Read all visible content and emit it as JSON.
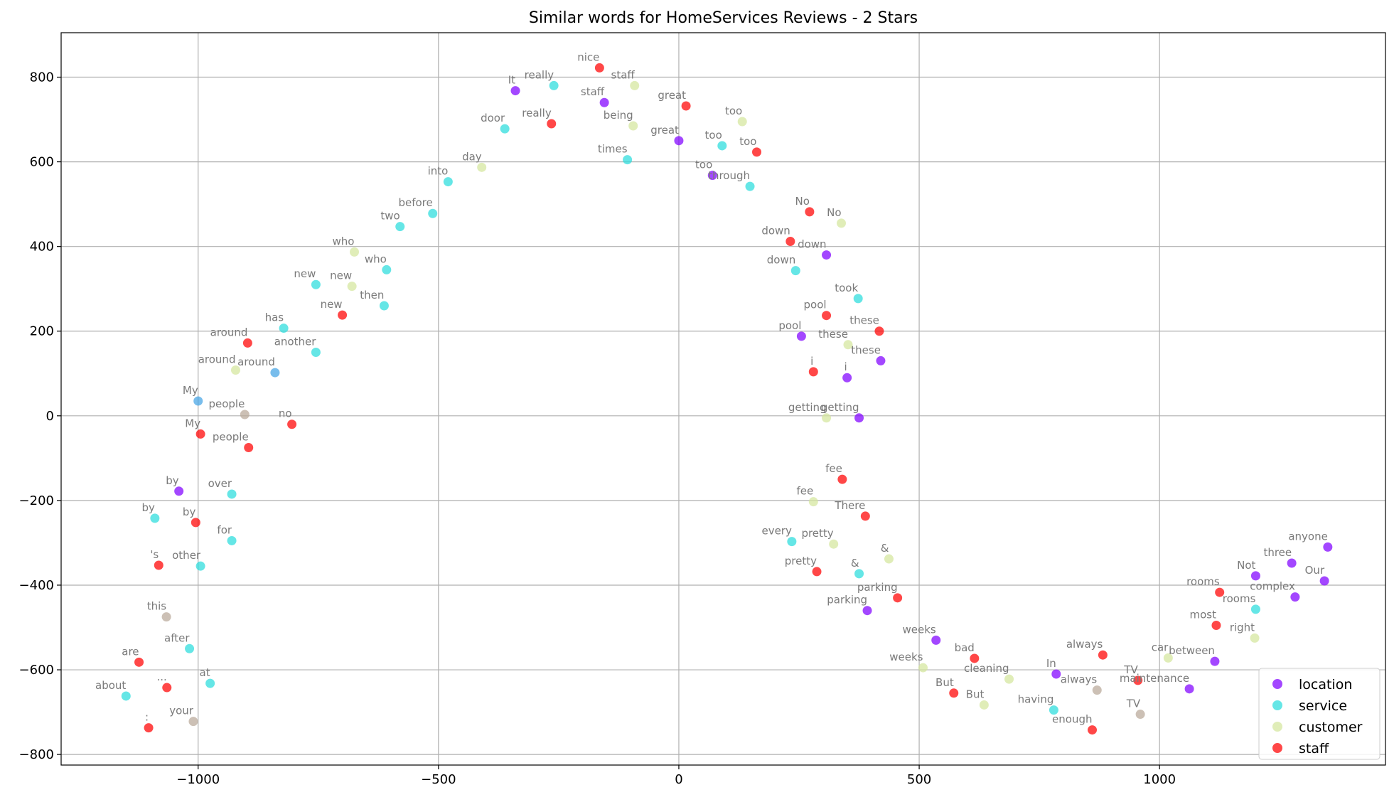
{
  "chart_data": {
    "type": "scatter",
    "title": "Similar words for HomeServices Reviews - 2 Stars",
    "xlabel": "",
    "ylabel": "",
    "xlim": [
      -1285,
      1470
    ],
    "ylim": [
      -825,
      905
    ],
    "xticks": [
      -1000,
      -500,
      0,
      500,
      1000
    ],
    "yticks": [
      -800,
      -600,
      -400,
      -200,
      0,
      200,
      400,
      600,
      800
    ],
    "xtick_labels": [
      "−1000",
      "−500",
      "0",
      "500",
      "1000"
    ],
    "ytick_labels": [
      "−800",
      "−600",
      "−400",
      "−200",
      "0",
      "200",
      "400",
      "600",
      "800"
    ],
    "grid": true,
    "legend_position": "lower right",
    "series": [
      {
        "name": "location",
        "color": "#8000ff",
        "points": [
          {
            "x": -340,
            "y": 768,
            "label": "It"
          },
          {
            "x": -155,
            "y": 740,
            "label": "staff"
          },
          {
            "x": 0,
            "y": 650,
            "label": "great"
          },
          {
            "x": 70,
            "y": 568,
            "label": "too"
          },
          {
            "x": 307,
            "y": 380,
            "label": "down"
          },
          {
            "x": 255,
            "y": 188,
            "label": "pool"
          },
          {
            "x": 420,
            "y": 130,
            "label": "these"
          },
          {
            "x": 350,
            "y": 90,
            "label": "i"
          },
          {
            "x": 375,
            "y": -5,
            "label": "getting"
          },
          {
            "x": -1040,
            "y": -178,
            "label": "by"
          },
          {
            "x": 392,
            "y": -460,
            "label": "parking"
          },
          {
            "x": 535,
            "y": -530,
            "label": "weeks"
          },
          {
            "x": 785,
            "y": -610,
            "label": "In"
          },
          {
            "x": 1062,
            "y": -645,
            "label": "maintenance"
          },
          {
            "x": 1115,
            "y": -580,
            "label": "between"
          },
          {
            "x": 1200,
            "y": -378,
            "label": "Not"
          },
          {
            "x": 1275,
            "y": -348,
            "label": "three"
          },
          {
            "x": 1282,
            "y": -428,
            "label": "complex"
          },
          {
            "x": 1350,
            "y": -310,
            "label": "anyone"
          },
          {
            "x": 1343,
            "y": -390,
            "label": "Our"
          }
        ]
      },
      {
        "name": "service",
        "color": "#2adddd",
        "points": [
          {
            "x": -260,
            "y": 780,
            "label": "really"
          },
          {
            "x": -362,
            "y": 678,
            "label": "door"
          },
          {
            "x": -107,
            "y": 605,
            "label": "times"
          },
          {
            "x": 90,
            "y": 638,
            "label": "too"
          },
          {
            "x": 148,
            "y": 542,
            "label": "through"
          },
          {
            "x": -480,
            "y": 553,
            "label": "into"
          },
          {
            "x": -512,
            "y": 478,
            "label": "before"
          },
          {
            "x": -580,
            "y": 447,
            "label": "two"
          },
          {
            "x": -608,
            "y": 345,
            "label": "who"
          },
          {
            "x": -755,
            "y": 310,
            "label": "new"
          },
          {
            "x": -613,
            "y": 260,
            "label": "then"
          },
          {
            "x": -822,
            "y": 207,
            "label": "has"
          },
          {
            "x": -755,
            "y": 150,
            "label": "another"
          },
          {
            "x": 243,
            "y": 343,
            "label": "down"
          },
          {
            "x": 373,
            "y": 277,
            "label": "took"
          },
          {
            "x": -930,
            "y": -185,
            "label": "over"
          },
          {
            "x": -1090,
            "y": -242,
            "label": "by"
          },
          {
            "x": -930,
            "y": -295,
            "label": "for"
          },
          {
            "x": -995,
            "y": -355,
            "label": "other"
          },
          {
            "x": 235,
            "y": -297,
            "label": "every"
          },
          {
            "x": 375,
            "y": -373,
            "label": "&"
          },
          {
            "x": -1018,
            "y": -550,
            "label": "after"
          },
          {
            "x": -975,
            "y": -632,
            "label": "at"
          },
          {
            "x": -1150,
            "y": -662,
            "label": "about"
          },
          {
            "x": 780,
            "y": -695,
            "label": "having"
          },
          {
            "x": 1200,
            "y": -457,
            "label": "rooms"
          }
        ]
      },
      {
        "name": "customer",
        "color": "#d4e69c",
        "points": [
          {
            "x": -92,
            "y": 780,
            "label": "staff"
          },
          {
            "x": -95,
            "y": 685,
            "label": "being"
          },
          {
            "x": 132,
            "y": 695,
            "label": "too"
          },
          {
            "x": -410,
            "y": 587,
            "label": "day"
          },
          {
            "x": 338,
            "y": 455,
            "label": "No"
          },
          {
            "x": -675,
            "y": 387,
            "label": "who"
          },
          {
            "x": -680,
            "y": 306,
            "label": "new"
          },
          {
            "x": -922,
            "y": 108,
            "label": "around"
          },
          {
            "x": 352,
            "y": 168,
            "label": "these"
          },
          {
            "x": 307,
            "y": -5,
            "label": "getting"
          },
          {
            "x": 280,
            "y": -203,
            "label": "fee"
          },
          {
            "x": 322,
            "y": -303,
            "label": "pretty"
          },
          {
            "x": 437,
            "y": -338,
            "label": "&"
          },
          {
            "x": 508,
            "y": -595,
            "label": "weeks"
          },
          {
            "x": 635,
            "y": -683,
            "label": "But"
          },
          {
            "x": 687,
            "y": -622,
            "label": "cleaning"
          },
          {
            "x": 1018,
            "y": -572,
            "label": "car"
          },
          {
            "x": 1198,
            "y": -525,
            "label": "right"
          }
        ]
      },
      {
        "name": "staff",
        "color": "#ff0000",
        "points": [
          {
            "x": -165,
            "y": 822,
            "label": "nice"
          },
          {
            "x": -265,
            "y": 690,
            "label": "really"
          },
          {
            "x": 15,
            "y": 732,
            "label": "great"
          },
          {
            "x": 162,
            "y": 623,
            "label": "too"
          },
          {
            "x": 272,
            "y": 482,
            "label": "No"
          },
          {
            "x": 232,
            "y": 412,
            "label": "down"
          },
          {
            "x": 307,
            "y": 237,
            "label": "pool"
          },
          {
            "x": 417,
            "y": 200,
            "label": "these"
          },
          {
            "x": 280,
            "y": 104,
            "label": "i"
          },
          {
            "x": -700,
            "y": 238,
            "label": "new"
          },
          {
            "x": -897,
            "y": 172,
            "label": "around"
          },
          {
            "x": -995,
            "y": -43,
            "label": "My"
          },
          {
            "x": -895,
            "y": -75,
            "label": "people"
          },
          {
            "x": -805,
            "y": -20,
            "label": "no"
          },
          {
            "x": 340,
            "y": -150,
            "label": "fee"
          },
          {
            "x": 388,
            "y": -237,
            "label": "There"
          },
          {
            "x": -1005,
            "y": -252,
            "label": "by"
          },
          {
            "x": -1082,
            "y": -353,
            "label": "'s"
          },
          {
            "x": 287,
            "y": -368,
            "label": "pretty"
          },
          {
            "x": 455,
            "y": -430,
            "label": "parking"
          },
          {
            "x": -1123,
            "y": -582,
            "label": "are"
          },
          {
            "x": -1065,
            "y": -642,
            "label": "..."
          },
          {
            "x": -1103,
            "y": -737,
            "label": ":"
          },
          {
            "x": 615,
            "y": -573,
            "label": "bad"
          },
          {
            "x": 572,
            "y": -655,
            "label": "But"
          },
          {
            "x": 882,
            "y": -565,
            "label": "always"
          },
          {
            "x": 860,
            "y": -742,
            "label": "enough"
          },
          {
            "x": 955,
            "y": -625,
            "label": "TV"
          },
          {
            "x": 1125,
            "y": -417,
            "label": "rooms"
          },
          {
            "x": 1118,
            "y": -495,
            "label": "most"
          }
        ]
      }
    ],
    "other_points": [
      {
        "x": -1000,
        "y": 35,
        "label": "My",
        "color": "#44a4e4"
      },
      {
        "x": -840,
        "y": 102,
        "label": "around",
        "color": "#44a4e4"
      },
      {
        "x": -903,
        "y": 3,
        "label": "people",
        "color": "#b8a898"
      },
      {
        "x": -1066,
        "y": -475,
        "label": "this",
        "color": "#b8a898"
      },
      {
        "x": -1010,
        "y": -722,
        "label": "your",
        "color": "#b8a898"
      },
      {
        "x": 870,
        "y": -648,
        "label": "always",
        "color": "#b8a898"
      },
      {
        "x": 960,
        "y": -705,
        "label": "TV",
        "color": "#b8a898"
      }
    ]
  }
}
